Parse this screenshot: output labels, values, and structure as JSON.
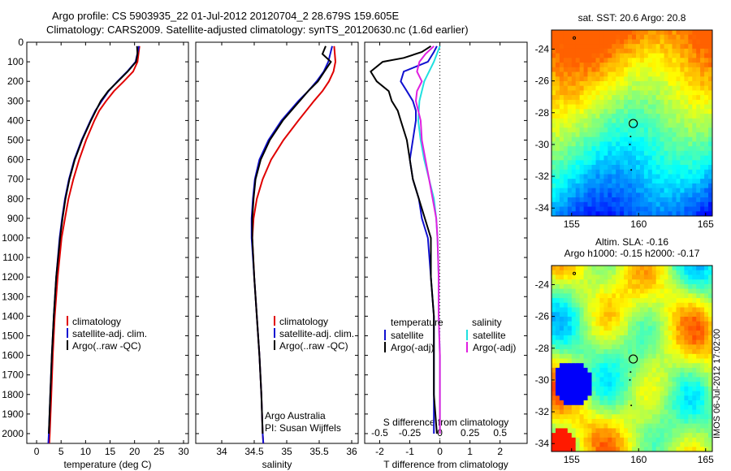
{
  "title_line1": "Argo profile: CS 5903935_22 01-Jul-2012 20120704_2 28.679S 159.605E",
  "title_line2": "Climatology: CARS2009. Satellite-adjusted climatology: synTS_20120630.nc (1.6d earlier)",
  "side_text": "IMOS 06-Jul-2012 17:02:00",
  "colors": {
    "climatology": "#e00000",
    "satellite": "#1010d0",
    "argo": "#000000",
    "sat_salinity": "#20e0e0",
    "argo_salinity": "#e020e0"
  },
  "chart_data": [
    {
      "type": "line",
      "xlabel": "temperature (deg C)",
      "xlim": [
        -2,
        31
      ],
      "ylim": [
        2050,
        0
      ],
      "xticks": [
        0,
        5,
        10,
        15,
        20,
        25,
        30
      ],
      "yticks": [
        0,
        100,
        200,
        300,
        400,
        500,
        600,
        700,
        800,
        900,
        1000,
        1100,
        1200,
        1300,
        1400,
        1500,
        1600,
        1700,
        1800,
        1900,
        2000
      ],
      "legend": [
        "climatology",
        "satellite-adj. clim.",
        "Argo(..raw -QC)"
      ],
      "series": [
        {
          "name": "climatology",
          "depth": [
            20,
            100,
            150,
            200,
            250,
            300,
            350,
            400,
            500,
            600,
            700,
            800,
            900,
            1000,
            1200,
            1400,
            1600,
            1800,
            2000,
            2050
          ],
          "values": [
            21.0,
            20.6,
            19.7,
            17.8,
            15.8,
            14.2,
            12.8,
            11.8,
            10.1,
            8.7,
            7.5,
            6.5,
            5.8,
            5.1,
            4.3,
            3.7,
            3.3,
            3.0,
            2.7,
            2.6
          ]
        },
        {
          "name": "satellite-adj. clim.",
          "depth": [
            20,
            100,
            150,
            200,
            250,
            300,
            350,
            400,
            500,
            600,
            700,
            800,
            900,
            1000,
            1200,
            1400,
            1600,
            1800,
            2000,
            2050
          ],
          "values": [
            20.9,
            20.2,
            18.5,
            16.5,
            14.7,
            13.3,
            12.0,
            11.0,
            9.2,
            7.7,
            6.6,
            5.8,
            5.2,
            4.7,
            4.0,
            3.5,
            3.1,
            2.8,
            2.5,
            2.4
          ]
        },
        {
          "name": "Argo(..raw -QC)",
          "depth": [
            20,
            60,
            100,
            150,
            200,
            250,
            300,
            350,
            400,
            500,
            600,
            700,
            800,
            900,
            1000,
            1200,
            1400,
            1600,
            1800,
            2000
          ],
          "values": [
            20.5,
            20.6,
            20.3,
            18.6,
            16.6,
            14.6,
            13.1,
            12.1,
            11.1,
            9.3,
            7.8,
            6.7,
            5.9,
            5.3,
            4.8,
            4.0,
            3.5,
            3.1,
            2.8,
            2.5
          ]
        }
      ]
    },
    {
      "type": "line",
      "xlabel": "salinity",
      "xlim": [
        33.6,
        36.1
      ],
      "ylim": [
        2050,
        0
      ],
      "xticks": [
        34,
        34.5,
        35,
        35.5,
        36
      ],
      "legend": [
        "climatology",
        "satellite-adj. clim.",
        "Argo(..raw -QC)"
      ],
      "annotation": [
        "Argo Australia",
        "PI: Susan Wijffels"
      ],
      "series": [
        {
          "name": "climatology",
          "depth": [
            20,
            100,
            150,
            200,
            250,
            300,
            400,
            500,
            600,
            700,
            800,
            900,
            1000,
            1200,
            1400,
            1600,
            1800,
            2000,
            2050
          ],
          "values": [
            35.73,
            35.75,
            35.72,
            35.65,
            35.55,
            35.42,
            35.18,
            34.95,
            34.76,
            34.63,
            34.54,
            34.49,
            34.47,
            34.5,
            34.54,
            34.58,
            34.61,
            34.63,
            34.64
          ]
        },
        {
          "name": "satellite-adj. clim.",
          "depth": [
            20,
            100,
            150,
            200,
            250,
            300,
            400,
            500,
            600,
            700,
            800,
            900,
            1000,
            1200,
            1400,
            1600,
            1800,
            2000,
            2050
          ],
          "values": [
            35.7,
            35.64,
            35.57,
            35.46,
            35.33,
            35.18,
            34.92,
            34.72,
            34.58,
            34.51,
            34.48,
            34.46,
            34.46,
            34.5,
            34.54,
            34.58,
            34.61,
            34.63,
            34.64
          ]
        },
        {
          "name": "Argo(..raw -QC)",
          "depth": [
            20,
            60,
            100,
            150,
            200,
            250,
            300,
            400,
            500,
            600,
            700,
            800,
            900,
            1000,
            1200,
            1400,
            1600,
            1800,
            2000
          ],
          "values": [
            35.6,
            35.55,
            35.68,
            35.58,
            35.48,
            35.33,
            35.2,
            34.94,
            34.74,
            34.6,
            34.52,
            34.49,
            34.47,
            34.47,
            34.5,
            34.54,
            34.58,
            34.61,
            34.63
          ]
        }
      ]
    },
    {
      "type": "line",
      "xlabel": "T difference from climatology",
      "top_axis_label": "S difference from climatology",
      "xlim": [
        -2.5,
        2.9
      ],
      "ylim": [
        2050,
        0
      ],
      "xticks": [
        -2,
        -1,
        0,
        1,
        2
      ],
      "top_ticks": [
        -0.5,
        -0.25,
        0,
        0.25,
        0.5
      ],
      "legend_titles": [
        "temperature",
        "salinity"
      ],
      "legend": [
        "satellite",
        "Argo(-adj)",
        "satellite",
        "Argo(-adj)"
      ],
      "series": [
        {
          "name": "satellite",
          "depth": [
            20,
            50,
            100,
            150,
            200,
            250,
            300,
            350,
            400,
            500,
            600,
            700,
            800,
            900,
            1000,
            1200,
            1400,
            1600,
            1800,
            2000
          ],
          "values": [
            -0.1,
            -0.2,
            -0.4,
            -1.2,
            -1.3,
            -1.1,
            -0.9,
            -0.8,
            -0.8,
            -0.9,
            -1.0,
            -0.9,
            -0.7,
            -0.6,
            -0.4,
            -0.3,
            -0.2,
            -0.2,
            -0.2,
            -0.2
          ]
        },
        {
          "name": "Argo(-adj)",
          "depth": [
            20,
            50,
            80,
            100,
            150,
            200,
            250,
            300,
            350,
            400,
            500,
            600,
            700,
            800,
            900,
            1000,
            1200,
            1400,
            1600,
            1800,
            2000
          ],
          "values": [
            -0.3,
            -0.6,
            -1.2,
            -1.9,
            -2.3,
            -2.1,
            -1.7,
            -1.6,
            -1.4,
            -1.3,
            -1.1,
            -1.0,
            -0.9,
            -0.7,
            -0.5,
            -0.3,
            -0.3,
            -0.2,
            -0.2,
            -0.2,
            -0.1
          ]
        },
        {
          "name": "satellite (salinity)",
          "depth": [
            20,
            100,
            150,
            200,
            300,
            400,
            500,
            600,
            700,
            800,
            900,
            1000,
            1200,
            1400,
            1600,
            1800,
            2000
          ],
          "values": [
            0.0,
            -0.05,
            -0.09,
            -0.13,
            -0.17,
            -0.18,
            -0.16,
            -0.13,
            -0.09,
            -0.05,
            -0.03,
            -0.02,
            -0.01,
            -0.01,
            0.0,
            0.0,
            0.0
          ]
        },
        {
          "name": "Argo(-adj) (salinity)",
          "depth": [
            20,
            60,
            100,
            150,
            200,
            250,
            300,
            400,
            500,
            600,
            700,
            800,
            900,
            1000,
            1200,
            1400,
            1600,
            1800,
            2000
          ],
          "values": [
            -0.05,
            -0.12,
            -0.17,
            -0.19,
            -0.15,
            -0.19,
            -0.2,
            -0.16,
            -0.15,
            -0.12,
            -0.09,
            -0.06,
            -0.03,
            -0.02,
            -0.01,
            -0.01,
            0.0,
            0.0,
            0.0
          ]
        }
      ]
    },
    {
      "type": "heatmap",
      "title": "sat. SST: 20.6  Argo: 20.8",
      "xlim": [
        153.5,
        165.5
      ],
      "ylim": [
        -34.5,
        -22.8
      ],
      "xticks": [
        155,
        160,
        165
      ],
      "yticks": [
        -24,
        -26,
        -28,
        -30,
        -32,
        -34
      ],
      "marker": {
        "lon": 159.6,
        "lat": -28.68
      }
    },
    {
      "type": "heatmap",
      "title_line1": "Altim. SLA: -0.16",
      "title_line2": "Argo h1000: -0.15 h2000: -0.17",
      "xlim": [
        153.5,
        165.5
      ],
      "ylim": [
        -34.5,
        -22.8
      ],
      "xticks": [
        155,
        160,
        165
      ],
      "yticks": [
        -24,
        -26,
        -28,
        -30,
        -32,
        -34
      ],
      "marker": {
        "lon": 159.6,
        "lat": -28.68
      }
    }
  ]
}
